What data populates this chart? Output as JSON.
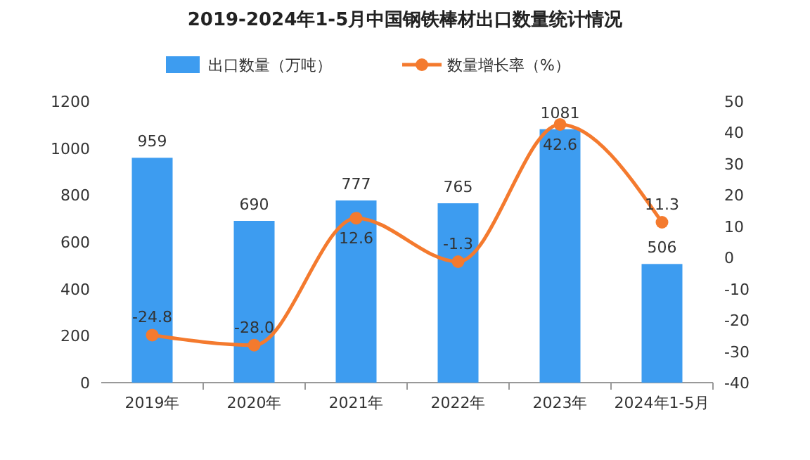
{
  "chart_data": {
    "type": "bar",
    "title": "2019-2024年1-5月中国钢铁棒材出口数量统计情况",
    "categories": [
      "2019年",
      "2020年",
      "2021年",
      "2022年",
      "2023年",
      "2024年1-5月"
    ],
    "series": [
      {
        "name": "出口数量（万吨）",
        "color": "#3d9cf0",
        "values": [
          959,
          690,
          777,
          765,
          1081,
          506
        ]
      },
      {
        "name": "数量增长率（%）",
        "type": "line",
        "axis": "y2",
        "color": "#f47a2e",
        "marker": "circle",
        "values": [
          -24.8,
          -28.0,
          12.6,
          -1.3,
          42.6,
          11.3
        ],
        "value_labels": [
          "-24.8",
          "-28.0",
          "12.6",
          "-1.3",
          "42.6",
          "11.3"
        ]
      }
    ],
    "ylim": [
      0,
      1200
    ],
    "yticks": [
      0,
      200,
      400,
      600,
      800,
      1000,
      1200
    ],
    "y2lim": [
      -40,
      50
    ],
    "y2ticks": [
      -40,
      -30,
      -20,
      -10,
      0,
      10,
      20,
      30,
      40,
      50
    ],
    "data_labels": true,
    "legend": "top"
  }
}
